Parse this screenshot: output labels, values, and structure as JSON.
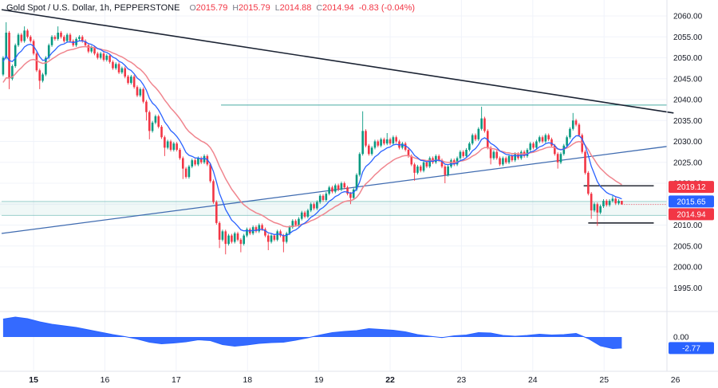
{
  "colors": {
    "up": "#089981",
    "down": "#f23645",
    "ma_fast": "#2962ff",
    "ma_slow": "#f0858e",
    "osc": "#2962ff",
    "trend_dark": "#1b2333",
    "trend_blue": "#3f6bb0",
    "level_teal": "#2a9d93",
    "band_fill": "rgba(42,157,147,0.07)",
    "grid": "#f0f3fa",
    "axis_border": "#e0e3eb",
    "axis_text": "#131722",
    "badge_text": "#ffffff"
  },
  "chart_data": {
    "type": "candlestick",
    "title": "Gold Spot / U.S. Dollar, 1h, PEPPERSTONE",
    "legend": {
      "o_key": "O",
      "o": "2015.79",
      "h_key": "H",
      "h": "2015.79",
      "l_key": "L",
      "l": "2014.88",
      "c_key": "C",
      "c": "2014.94",
      "change": "-0.83 (-0.04%)"
    },
    "y_axis": {
      "tick_labels": [
        "2060.00",
        "2055.00",
        "2050.00",
        "2045.00",
        "2040.00",
        "2035.00",
        "2030.00",
        "2025.00",
        "2020.00",
        "2015.00",
        "2010.00",
        "2005.00",
        "2000.00",
        "1995.00"
      ]
    },
    "x_axis": {
      "ticks": [
        {
          "label": "15",
          "bar": 10,
          "bold": true
        },
        {
          "label": "16",
          "bar": 33.4,
          "bold": false
        },
        {
          "label": "17",
          "bar": 56.8,
          "bold": false
        },
        {
          "label": "18",
          "bar": 80.2,
          "bold": false
        },
        {
          "label": "19",
          "bar": 103.6,
          "bold": false
        },
        {
          "label": "22",
          "bar": 127,
          "bold": true
        },
        {
          "label": "23",
          "bar": 150.4,
          "bold": false
        },
        {
          "label": "24",
          "bar": 173.8,
          "bold": false
        },
        {
          "label": "25",
          "bar": 197.2,
          "bold": false
        },
        {
          "label": "26",
          "bar": 220.6,
          "bold": false
        }
      ]
    },
    "price": {
      "first_open": 2046,
      "closes": [
        2050,
        2056,
        2045,
        2048,
        2053,
        2055.5,
        2054,
        2056.5,
        2055,
        2054,
        2051,
        2047,
        2044.5,
        2046,
        2050,
        2053,
        2055,
        2054.5,
        2056,
        2055,
        2054,
        2055.5,
        2054,
        2053,
        2054.5,
        2055,
        2054,
        2053,
        2051.5,
        2052.5,
        2051,
        2050,
        2051,
        2049.5,
        2050.5,
        2049,
        2047.5,
        2048.5,
        2046.5,
        2047.5,
        2045.5,
        2044,
        2045.5,
        2043,
        2041,
        2042.5,
        2039.5,
        2037,
        2032.5,
        2034.5,
        2036,
        2033.5,
        2031,
        2028.5,
        2030,
        2028,
        2029.5,
        2028,
        2026,
        2023.5,
        2021.5,
        2024,
        2025.5,
        2024.5,
        2026,
        2025,
        2026.5,
        2024.5,
        2020.5,
        2015.5,
        2010.5,
        2006.5,
        2008.5,
        2005.5,
        2007.5,
        2006,
        2008,
        2006.5,
        2005.5,
        2007.5,
        2009,
        2008,
        2009.5,
        2008.5,
        2010,
        2009,
        2007.5,
        2006,
        2007.5,
        2006.5,
        2008.5,
        2007.5,
        2006,
        2008,
        2009.5,
        2011,
        2010,
        2011.5,
        2013,
        2012,
        2013.5,
        2015,
        2014,
        2015.5,
        2017,
        2016,
        2017.5,
        2019,
        2018,
        2019.5,
        2018.5,
        2020,
        2019,
        2017.5,
        2016.5,
        2018.5,
        2022,
        2027,
        2032.5,
        2029,
        2027,
        2028.5,
        2030,
        2029,
        2030.5,
        2029.5,
        2030.5,
        2029.5,
        2031,
        2030,
        2028.5,
        2029.5,
        2028,
        2026.5,
        2024.5,
        2022.5,
        2024,
        2023,
        2025,
        2024,
        2026,
        2025,
        2026.5,
        2025.5,
        2024,
        2022,
        2024,
        2025.5,
        2024.5,
        2026,
        2027.5,
        2026.5,
        2028,
        2029.5,
        2031.5,
        2030.5,
        2033,
        2035.5,
        2032.5,
        2028.5,
        2026,
        2027.5,
        2026,
        2024.5,
        2026,
        2025,
        2026.5,
        2025.5,
        2027,
        2026,
        2027.5,
        2026.5,
        2028,
        2029.5,
        2028.5,
        2030,
        2031,
        2030,
        2031.5,
        2030.5,
        2029,
        2027,
        2025,
        2027,
        2029,
        2031,
        2033,
        2035,
        2034,
        2031.5,
        2027.5,
        2022.5,
        2017.5,
        2013.5,
        2015,
        2013,
        2014.5,
        2015.8,
        2014.8,
        2015.8,
        2016.3,
        2015.2,
        2015.8,
        2014.94
      ],
      "wick_overrides": [
        [
          1,
          2058.5,
          null
        ],
        [
          2,
          null,
          2042.5
        ],
        [
          7,
          2057.5,
          null
        ],
        [
          12,
          null,
          2042.5
        ],
        [
          18,
          2057.5,
          null
        ],
        [
          47,
          null,
          2035
        ],
        [
          48,
          null,
          2030.5
        ],
        [
          53,
          null,
          2026.5
        ],
        [
          59,
          null,
          2021
        ],
        [
          71,
          null,
          2004.5
        ],
        [
          73,
          null,
          2003
        ],
        [
          78,
          null,
          2003.5
        ],
        [
          87,
          null,
          2004
        ],
        [
          92,
          null,
          2003.5
        ],
        [
          114,
          null,
          2015
        ],
        [
          118,
          2037.2,
          null
        ],
        [
          126,
          2032,
          null
        ],
        [
          135,
          null,
          2020.6
        ],
        [
          145,
          null,
          2020
        ],
        [
          157,
          2038.3,
          null
        ],
        [
          160,
          null,
          2024.5
        ],
        [
          182,
          null,
          2023.5
        ],
        [
          187,
          2036.8,
          null
        ],
        [
          193,
          null,
          2011.5
        ],
        [
          195,
          null,
          2009.8
        ],
        [
          200,
          2017,
          null
        ],
        [
          203,
          2015.79,
          2014.88
        ]
      ]
    },
    "ma_fast": {
      "period": 9,
      "last_value": "2015.65"
    },
    "ma_slow": {
      "period": 21,
      "last_value": "2019.12"
    },
    "oscillator": {
      "zero_label": "0.00",
      "last_label": "-2.77",
      "points": [
        [
          0,
          4.5
        ],
        [
          4,
          5.0
        ],
        [
          8,
          4.6
        ],
        [
          12,
          3.8
        ],
        [
          16,
          3.2
        ],
        [
          20,
          2.8
        ],
        [
          24,
          2.4
        ],
        [
          28,
          1.8
        ],
        [
          32,
          1.2
        ],
        [
          36,
          0.6
        ],
        [
          40,
          0.1
        ],
        [
          44,
          -0.5
        ],
        [
          48,
          -1.3
        ],
        [
          52,
          -1.7
        ],
        [
          56,
          -1.5
        ],
        [
          60,
          -1.2
        ],
        [
          64,
          -0.7
        ],
        [
          68,
          -0.9
        ],
        [
          72,
          -1.9
        ],
        [
          76,
          -2.3
        ],
        [
          80,
          -2.0
        ],
        [
          84,
          -1.6
        ],
        [
          88,
          -1.4
        ],
        [
          92,
          -1.3
        ],
        [
          96,
          -0.8
        ],
        [
          100,
          -0.2
        ],
        [
          104,
          0.5
        ],
        [
          108,
          1.1
        ],
        [
          112,
          1.4
        ],
        [
          116,
          1.6
        ],
        [
          120,
          2.1
        ],
        [
          124,
          1.9
        ],
        [
          128,
          1.7
        ],
        [
          132,
          1.3
        ],
        [
          136,
          0.6
        ],
        [
          140,
          0.2
        ],
        [
          144,
          -0.15
        ],
        [
          148,
          0.3
        ],
        [
          152,
          0.5
        ],
        [
          156,
          1.1
        ],
        [
          160,
          1.0
        ],
        [
          164,
          0.4
        ],
        [
          168,
          0.2
        ],
        [
          172,
          0.4
        ],
        [
          176,
          0.7
        ],
        [
          180,
          0.5
        ],
        [
          184,
          0.6
        ],
        [
          188,
          0.9
        ],
        [
          192,
          -0.4
        ],
        [
          196,
          -2.2
        ],
        [
          200,
          -2.9
        ],
        [
          203,
          -2.77
        ]
      ]
    },
    "lines": {
      "descending_trendline": {
        "from_bar": 0,
        "p1": 2061.5,
        "to_bar": 220,
        "p2": 2036.8
      },
      "ascending_trendline": {
        "from_bar": 0,
        "p1": 2008,
        "to_bar": 220,
        "p2": 2028.8
      },
      "band": {
        "top": 2015.65,
        "bottom": 2012.3
      },
      "horizontal_levels": [
        {
          "price": 2038.7,
          "from_bar": 72,
          "to_bar": 219,
          "style": "teal"
        },
        {
          "price": 2015.65,
          "from_bar": 0,
          "to_bar": 219,
          "style": "teal-light"
        },
        {
          "price": 2012.3,
          "from_bar": 0,
          "to_bar": 219,
          "style": "teal-light"
        },
        {
          "price": 2019.4,
          "from_bar": 191,
          "to_bar": 213.5,
          "style": "black"
        },
        {
          "price": 2010.5,
          "from_bar": 192.5,
          "to_bar": 213.5,
          "style": "black"
        }
      ]
    },
    "axis_badges": [
      {
        "text": "2019.12",
        "bg": "#f23645",
        "price": 2019.12
      },
      {
        "text": "2015.65",
        "bg": "#2962ff",
        "price": 2015.65
      },
      {
        "text": "2014.94",
        "bg": "#f23645",
        "price": 2014.94,
        "is_last_price": true
      }
    ],
    "osc_badge": {
      "text": "-2.77",
      "bg": "#2962ff",
      "value": -2.77
    }
  }
}
